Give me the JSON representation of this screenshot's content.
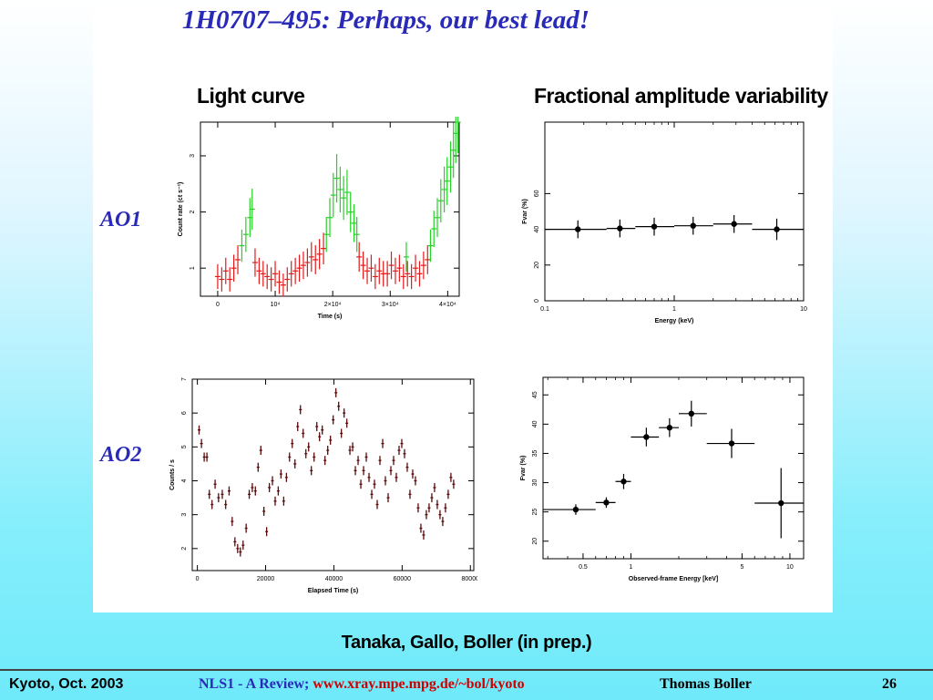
{
  "slide": {
    "title": "1H0707–495: Perhaps, our best lead!",
    "col_left": "Light curve",
    "col_right": "Fractional amplitude variability",
    "row_top": "AO1",
    "row_bottom": "AO2",
    "credit": "Tanaka, Gallo, Boller (in prep.)"
  },
  "footer": {
    "left": "Kyoto, Oct. 2003",
    "mid_a": "NLS1 - A Review;",
    "mid_b": "www.xray.mpe.mpg.de/~bol/kyoto",
    "author": "Thomas Boller",
    "page": "26"
  },
  "colors": {
    "title": "#2a2ab8",
    "low_state": "#e21a1a",
    "high_state": "#22d322",
    "ao2_points": "#5a0a0a",
    "frac_points": "#000000"
  },
  "chart_data": [
    {
      "id": "ao1-lightcurve",
      "type": "scatter",
      "xlabel": "Time (s)",
      "ylabel": "Count rate (ct s⁻¹)",
      "xlim": [
        -3000,
        42000
      ],
      "ylim": [
        0.5,
        3.6
      ],
      "xticks": [
        {
          "v": 0,
          "label": "0"
        },
        {
          "v": 10000,
          "label": "10⁴"
        },
        {
          "v": 20000,
          "label": "2×10⁴"
        },
        {
          "v": 30000,
          "label": "3×10⁴"
        },
        {
          "v": 40000,
          "label": "4×10⁴"
        }
      ],
      "yticks": [
        {
          "v": 1,
          "label": "1"
        },
        {
          "v": 2,
          "label": "2"
        },
        {
          "v": 3,
          "label": "3"
        }
      ],
      "series": [
        {
          "color_key": "low_state",
          "points": [
            [
              0,
              0.85
            ],
            [
              700,
              0.8
            ],
            [
              1400,
              0.95
            ],
            [
              2100,
              0.8
            ],
            [
              2800,
              1.0
            ],
            [
              3500,
              1.15
            ],
            [
              6500,
              1.1
            ],
            [
              7200,
              0.95
            ],
            [
              7900,
              0.9
            ],
            [
              8600,
              0.85
            ],
            [
              9300,
              0.8
            ],
            [
              10000,
              0.9
            ],
            [
              10700,
              0.75
            ],
            [
              11400,
              0.7
            ],
            [
              12100,
              0.8
            ],
            [
              12800,
              0.9
            ],
            [
              13500,
              0.95
            ],
            [
              14200,
              1.0
            ],
            [
              14900,
              1.05
            ],
            [
              15600,
              1.1
            ],
            [
              16300,
              1.2
            ],
            [
              17000,
              1.15
            ],
            [
              17700,
              1.25
            ],
            [
              18400,
              1.35
            ],
            [
              24600,
              1.2
            ],
            [
              25300,
              1.05
            ],
            [
              26000,
              0.95
            ],
            [
              26700,
              1.0
            ],
            [
              27400,
              0.85
            ],
            [
              28100,
              0.95
            ],
            [
              28800,
              0.9
            ],
            [
              29500,
              0.9
            ],
            [
              30200,
              1.05
            ],
            [
              30900,
              0.95
            ],
            [
              31600,
              1.0
            ],
            [
              32300,
              0.85
            ],
            [
              33000,
              0.9
            ],
            [
              33700,
              0.85
            ],
            [
              34400,
              1.0
            ],
            [
              35100,
              0.9
            ],
            [
              35800,
              1.05
            ],
            [
              36500,
              1.15
            ]
          ]
        },
        {
          "color_key": "high_state",
          "points": [
            [
              4200,
              1.4
            ],
            [
              4900,
              1.6
            ],
            [
              5600,
              1.9
            ],
            [
              6000,
              2.05
            ],
            [
              18900,
              1.6
            ],
            [
              19500,
              1.9
            ],
            [
              20100,
              2.3
            ],
            [
              20700,
              2.6
            ],
            [
              21300,
              2.4
            ],
            [
              21900,
              2.25
            ],
            [
              22500,
              2.35
            ],
            [
              23100,
              2.0
            ],
            [
              23700,
              1.8
            ],
            [
              24200,
              1.6
            ],
            [
              32800,
              1.2
            ],
            [
              37000,
              1.4
            ],
            [
              37600,
              1.7
            ],
            [
              38200,
              1.9
            ],
            [
              38800,
              2.2
            ],
            [
              39400,
              2.4
            ],
            [
              39900,
              2.55
            ],
            [
              40500,
              2.8
            ],
            [
              41000,
              3.1
            ],
            [
              41400,
              3.4
            ],
            [
              41800,
              3.6
            ]
          ]
        }
      ]
    },
    {
      "id": "ao1-fvar",
      "type": "scatter",
      "xlabel": "Energy (keV)",
      "ylabel": "Fvar (%)",
      "xscale": "log",
      "xlim": [
        0.1,
        10
      ],
      "ylim": [
        0,
        100
      ],
      "xticks": [
        {
          "v": 0.1,
          "label": "0.1"
        },
        {
          "v": 1,
          "label": "1"
        },
        {
          "v": 10,
          "label": "10"
        }
      ],
      "yticks": [
        {
          "v": 0,
          "label": "0"
        },
        {
          "v": 20,
          "label": "20"
        },
        {
          "v": 40,
          "label": "40"
        },
        {
          "v": 60,
          "label": "60"
        }
      ],
      "points": [
        {
          "x": 0.18,
          "y": 40,
          "xlo": 0.1,
          "xhi": 0.3,
          "yerr": 5
        },
        {
          "x": 0.38,
          "y": 40.5,
          "xlo": 0.3,
          "xhi": 0.5,
          "yerr": 5
        },
        {
          "x": 0.7,
          "y": 41.5,
          "xlo": 0.5,
          "xhi": 1.0,
          "yerr": 5
        },
        {
          "x": 1.4,
          "y": 42,
          "xlo": 1.0,
          "xhi": 2.0,
          "yerr": 5
        },
        {
          "x": 2.9,
          "y": 43,
          "xlo": 2.0,
          "xhi": 4.0,
          "yerr": 5
        },
        {
          "x": 6.2,
          "y": 40,
          "xlo": 4.0,
          "xhi": 10.0,
          "yerr": 6
        }
      ]
    },
    {
      "id": "ao2-lightcurve",
      "type": "scatter",
      "xlabel": "Elapsed Time (s)",
      "ylabel": "Counts / s",
      "xlim": [
        -1500,
        81000
      ],
      "ylim": [
        1.35,
        7.0
      ],
      "xticks": [
        {
          "v": 0,
          "label": "0"
        },
        {
          "v": 20000,
          "label": "20000"
        },
        {
          "v": 40000,
          "label": "40000"
        },
        {
          "v": 60000,
          "label": "60000"
        },
        {
          "v": 80000,
          "label": "80000"
        }
      ],
      "yticks": [
        {
          "v": 2,
          "label": "2"
        },
        {
          "v": 3,
          "label": "3"
        },
        {
          "v": 4,
          "label": "4"
        },
        {
          "v": 5,
          "label": "5"
        },
        {
          "v": 6,
          "label": "6"
        },
        {
          "v": 7,
          "label": "7"
        }
      ],
      "points": [
        [
          500,
          5.5
        ],
        [
          1200,
          5.1
        ],
        [
          2000,
          4.7
        ],
        [
          2800,
          4.7
        ],
        [
          3500,
          3.6
        ],
        [
          4300,
          3.3
        ],
        [
          5200,
          3.9
        ],
        [
          6200,
          3.5
        ],
        [
          7300,
          3.6
        ],
        [
          8300,
          3.3
        ],
        [
          9300,
          3.7
        ],
        [
          10200,
          2.8
        ],
        [
          11000,
          2.2
        ],
        [
          11800,
          2.0
        ],
        [
          12600,
          1.9
        ],
        [
          13400,
          2.1
        ],
        [
          14300,
          2.6
        ],
        [
          15200,
          3.6
        ],
        [
          16100,
          3.8
        ],
        [
          17000,
          3.7
        ],
        [
          17800,
          4.4
        ],
        [
          18600,
          4.9
        ],
        [
          19500,
          3.1
        ],
        [
          20300,
          2.5
        ],
        [
          21100,
          3.8
        ],
        [
          22000,
          4.0
        ],
        [
          22800,
          3.4
        ],
        [
          23700,
          3.7
        ],
        [
          24500,
          4.2
        ],
        [
          25300,
          3.4
        ],
        [
          26100,
          4.1
        ],
        [
          27000,
          4.7
        ],
        [
          27800,
          5.1
        ],
        [
          28600,
          4.5
        ],
        [
          29400,
          5.6
        ],
        [
          30200,
          6.1
        ],
        [
          31000,
          5.4
        ],
        [
          31800,
          4.8
        ],
        [
          32600,
          5.0
        ],
        [
          33400,
          4.3
        ],
        [
          34200,
          4.7
        ],
        [
          35000,
          5.6
        ],
        [
          35800,
          5.3
        ],
        [
          36600,
          5.5
        ],
        [
          37400,
          4.6
        ],
        [
          38200,
          4.9
        ],
        [
          39000,
          5.2
        ],
        [
          39800,
          5.8
        ],
        [
          40600,
          6.6
        ],
        [
          41400,
          6.2
        ],
        [
          42200,
          5.4
        ],
        [
          43000,
          6.0
        ],
        [
          43800,
          5.7
        ],
        [
          44700,
          4.9
        ],
        [
          45500,
          5.0
        ],
        [
          46300,
          4.3
        ],
        [
          47100,
          4.6
        ],
        [
          47900,
          3.9
        ],
        [
          48700,
          4.3
        ],
        [
          49500,
          4.7
        ],
        [
          50300,
          4.1
        ],
        [
          51100,
          3.6
        ],
        [
          51900,
          3.9
        ],
        [
          52700,
          3.3
        ],
        [
          53500,
          4.6
        ],
        [
          54300,
          5.1
        ],
        [
          55100,
          4.0
        ],
        [
          55900,
          3.5
        ],
        [
          56700,
          4.3
        ],
        [
          57500,
          4.6
        ],
        [
          58300,
          4.1
        ],
        [
          59100,
          4.9
        ],
        [
          59900,
          5.1
        ],
        [
          60700,
          4.8
        ],
        [
          61500,
          4.4
        ],
        [
          62300,
          3.6
        ],
        [
          63100,
          4.2
        ],
        [
          63900,
          4.0
        ],
        [
          64700,
          3.2
        ],
        [
          65500,
          2.6
        ],
        [
          66300,
          2.4
        ],
        [
          67100,
          3.0
        ],
        [
          67900,
          3.2
        ],
        [
          68700,
          3.5
        ],
        [
          69500,
          3.8
        ],
        [
          70300,
          3.3
        ],
        [
          71100,
          3.0
        ],
        [
          71900,
          2.8
        ],
        [
          72700,
          3.2
        ],
        [
          73500,
          3.6
        ],
        [
          74300,
          4.1
        ],
        [
          75100,
          3.9
        ]
      ]
    },
    {
      "id": "ao2-fvar",
      "type": "scatter",
      "xlabel": "Observed-frame Energy [keV]",
      "ylabel": "Fvar (%)",
      "xscale": "log",
      "xlim": [
        0.28,
        12.2
      ],
      "ylim": [
        17,
        48
      ],
      "xticks": [
        {
          "v": 0.5,
          "label": "0.5"
        },
        {
          "v": 1,
          "label": "1"
        },
        {
          "v": 5,
          "label": "5"
        },
        {
          "v": 10,
          "label": "10"
        }
      ],
      "yticks": [
        {
          "v": 20,
          "label": "20"
        },
        {
          "v": 25,
          "label": "25"
        },
        {
          "v": 30,
          "label": "30"
        },
        {
          "v": 35,
          "label": "35"
        },
        {
          "v": 40,
          "label": "40"
        },
        {
          "v": 45,
          "label": "45"
        }
      ],
      "points": [
        {
          "x": 0.45,
          "y": 25.4,
          "xlo": 0.28,
          "xhi": 0.6,
          "yerr": 0.9
        },
        {
          "x": 0.7,
          "y": 26.6,
          "xlo": 0.6,
          "xhi": 0.8,
          "yerr": 0.9
        },
        {
          "x": 0.9,
          "y": 30.2,
          "xlo": 0.8,
          "xhi": 1.0,
          "yerr": 1.3
        },
        {
          "x": 1.25,
          "y": 37.8,
          "xlo": 1.0,
          "xhi": 1.5,
          "yerr": 1.6
        },
        {
          "x": 1.75,
          "y": 39.4,
          "xlo": 1.5,
          "xhi": 2.0,
          "yerr": 1.6
        },
        {
          "x": 2.4,
          "y": 41.8,
          "xlo": 2.0,
          "xhi": 3.0,
          "yerr": 2.2
        },
        {
          "x": 4.3,
          "y": 36.7,
          "xlo": 3.0,
          "xhi": 6.0,
          "yerr": 2.5
        },
        {
          "x": 8.8,
          "y": 26.5,
          "xlo": 6.0,
          "xhi": 12.2,
          "yerr": 6.0
        }
      ]
    }
  ]
}
